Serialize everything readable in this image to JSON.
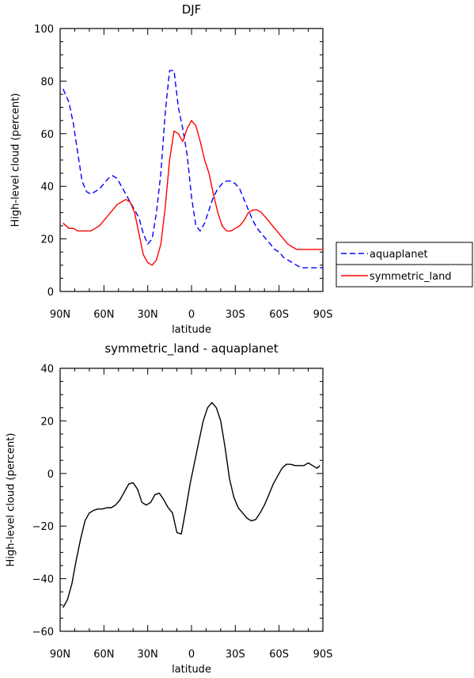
{
  "chart_data": [
    {
      "type": "line",
      "title": "DJF",
      "xlabel": "latitude",
      "ylabel": "High-level cloud (percent)",
      "xlim": [
        90,
        -90
      ],
      "ylim": [
        0,
        100
      ],
      "xticks": [
        90,
        60,
        30,
        0,
        -30,
        -60,
        -90
      ],
      "xtick_labels": [
        "90N",
        "60N",
        "30N",
        "0",
        "30S",
        "60S",
        "90S"
      ],
      "yticks": [
        0,
        20,
        40,
        60,
        80,
        100
      ],
      "ytick_labels": [
        "0",
        "20",
        "40",
        "60",
        "80",
        "100"
      ],
      "legend_position": "right",
      "series": [
        {
          "name": "aquaplanet",
          "color": "#0000ff",
          "dash": "dashed",
          "x": [
            88,
            84,
            81,
            78,
            75,
            72,
            69,
            66,
            63,
            60,
            57,
            54,
            51,
            48,
            45,
            42,
            39,
            36,
            33,
            30,
            27,
            24,
            21,
            18,
            15,
            12,
            9,
            6,
            3,
            0,
            -3,
            -6,
            -9,
            -12,
            -15,
            -18,
            -21,
            -24,
            -27,
            -30,
            -33,
            -36,
            -39,
            -42,
            -45,
            -48,
            -51,
            -54,
            -57,
            -60,
            -63,
            -66,
            -69,
            -72,
            -75,
            -78,
            -81,
            -84,
            -87,
            -90
          ],
          "y": [
            77,
            72,
            64,
            53,
            42,
            38,
            37,
            38,
            39,
            41,
            43,
            44,
            43,
            40,
            37,
            34,
            31,
            28,
            22,
            18,
            20,
            30,
            45,
            68,
            84,
            84,
            70,
            62,
            52,
            36,
            25,
            23,
            26,
            31,
            36,
            39,
            41,
            42,
            42,
            41,
            39,
            35,
            31,
            27,
            24,
            22,
            20,
            18,
            16,
            15,
            13,
            12,
            11,
            10,
            9,
            9,
            9,
            9,
            9,
            9
          ]
        },
        {
          "name": "symmetric_land",
          "color": "#ff0000",
          "dash": "solid",
          "x": [
            88,
            84,
            81,
            78,
            75,
            72,
            69,
            66,
            63,
            60,
            57,
            54,
            51,
            48,
            45,
            42,
            39,
            36,
            33,
            30,
            27,
            24,
            21,
            18,
            15,
            12,
            9,
            6,
            3,
            0,
            -3,
            -6,
            -9,
            -12,
            -15,
            -18,
            -21,
            -24,
            -27,
            -30,
            -33,
            -36,
            -39,
            -42,
            -45,
            -48,
            -51,
            -54,
            -57,
            -60,
            -63,
            -66,
            -69,
            -72,
            -75,
            -78,
            -81,
            -84,
            -87,
            -90
          ],
          "y": [
            26,
            24,
            24,
            23,
            23,
            23,
            23,
            24,
            25,
            27,
            29,
            31,
            33,
            34,
            35,
            34,
            30,
            22,
            14,
            11,
            10,
            12,
            18,
            32,
            50,
            61,
            60,
            57,
            62,
            65,
            63,
            57,
            50,
            45,
            37,
            30,
            25,
            23,
            23,
            24,
            25,
            27,
            30,
            31,
            31,
            30,
            28,
            26,
            24,
            22,
            20,
            18,
            17,
            16,
            16,
            16,
            16,
            16,
            16,
            16
          ]
        }
      ]
    },
    {
      "type": "line",
      "title": "symmetric_land - aquaplanet",
      "xlabel": "latitude",
      "ylabel": "High-level cloud (percent)",
      "xlim": [
        90,
        -90
      ],
      "ylim": [
        -60,
        40
      ],
      "xticks": [
        90,
        60,
        30,
        0,
        -30,
        -60,
        -90
      ],
      "xtick_labels": [
        "90N",
        "60N",
        "30N",
        "0",
        "30S",
        "60S",
        "90S"
      ],
      "yticks": [
        -60,
        -40,
        -20,
        0,
        20,
        40
      ],
      "ytick_labels": [
        "−60",
        "−40",
        "−20",
        "0",
        "20",
        "40"
      ],
      "series": [
        {
          "color": "#000000",
          "dash": "solid",
          "x": [
            88,
            85,
            82,
            79,
            76,
            73,
            70,
            67,
            64,
            61,
            58,
            55,
            52,
            49,
            46,
            43,
            40,
            37,
            34,
            31,
            28,
            25,
            22,
            19,
            16,
            13,
            10,
            7,
            4,
            1,
            -2,
            -5,
            -8,
            -11,
            -14,
            -17,
            -20,
            -23,
            -26,
            -29,
            -32,
            -35,
            -38,
            -41,
            -44,
            -47,
            -50,
            -53,
            -56,
            -59,
            -62,
            -65,
            -68,
            -71,
            -74,
            -77,
            -80,
            -83,
            -86,
            -88
          ],
          "y": [
            -51,
            -48,
            -42,
            -33,
            -25,
            -18,
            -15,
            -14,
            -13.5,
            -13.5,
            -13,
            -13,
            -12,
            -10,
            -7,
            -4,
            -3.5,
            -6,
            -11,
            -12,
            -11,
            -8,
            -7.5,
            -10,
            -13,
            -15,
            -22.5,
            -23,
            -14,
            -4,
            4,
            12,
            20,
            25,
            27,
            25,
            20,
            10,
            -2,
            -9,
            -13,
            -15,
            -17,
            -18,
            -17.5,
            -15,
            -12,
            -8,
            -4,
            -1,
            2,
            3.5,
            3.5,
            3,
            3,
            3,
            4,
            3,
            2,
            3
          ]
        }
      ]
    }
  ]
}
